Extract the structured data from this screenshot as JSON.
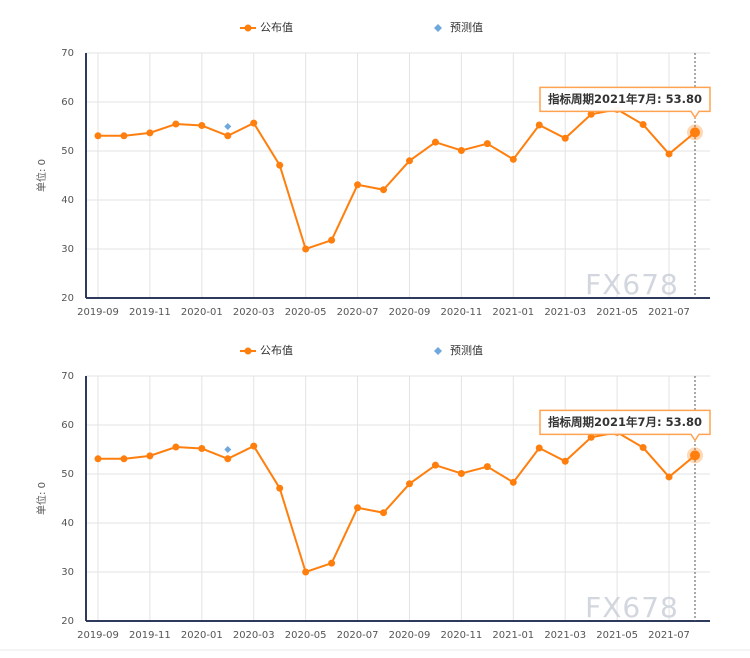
{
  "chart_data": [
    {
      "type": "line",
      "y_label": "单位: 0",
      "watermark": "FX678",
      "annotation": "指标周期2021年7月: 53.80",
      "categories": [
        "2019-09",
        null,
        "2019-11",
        null,
        "2020-01",
        null,
        "2020-03",
        null,
        "2020-05",
        null,
        "2020-07",
        null,
        "2020-09",
        null,
        "2020-11",
        null,
        "2021-01",
        null,
        "2021-03",
        null,
        "2021-05",
        null,
        "2021-07",
        null
      ],
      "series": [
        {
          "name": "公布值",
          "color": "#ff7f0e",
          "values": [
            53.1,
            53.1,
            53.7,
            55.5,
            55.2,
            53.1,
            55.7,
            47.1,
            30.0,
            31.8,
            43.1,
            42.1,
            48.0,
            51.8,
            50.1,
            51.5,
            48.3,
            55.3,
            52.6,
            57.5,
            58.5,
            55.4,
            49.4,
            53.8
          ]
        },
        {
          "name": "预测值",
          "color": "#6fa8dc",
          "values": [
            null,
            null,
            null,
            null,
            null,
            55.0,
            null,
            null,
            null,
            null,
            null,
            null,
            null,
            null,
            null,
            null,
            null,
            null,
            null,
            null,
            null,
            null,
            null,
            null
          ]
        }
      ],
      "ylim": [
        20,
        70
      ],
      "yticks": [
        20,
        30,
        40,
        50,
        60,
        70
      ],
      "grid": true
    },
    {
      "type": "line",
      "y_label": "单位: 0",
      "watermark": "FX678",
      "annotation": "指标周期2021年7月: 53.80",
      "categories": [
        "2019-09",
        null,
        "2019-11",
        null,
        "2020-01",
        null,
        "2020-03",
        null,
        "2020-05",
        null,
        "2020-07",
        null,
        "2020-09",
        null,
        "2020-11",
        null,
        "2021-01",
        null,
        "2021-03",
        null,
        "2021-05",
        null,
        "2021-07",
        null
      ],
      "series": [
        {
          "name": "公布值",
          "color": "#ff7f0e",
          "values": [
            53.1,
            53.1,
            53.7,
            55.5,
            55.2,
            53.1,
            55.7,
            47.1,
            30.0,
            31.8,
            43.1,
            42.1,
            48.0,
            51.8,
            50.1,
            51.5,
            48.3,
            55.3,
            52.6,
            57.5,
            58.5,
            55.4,
            49.4,
            53.8
          ]
        },
        {
          "name": "预测值",
          "color": "#6fa8dc",
          "values": [
            null,
            null,
            null,
            null,
            null,
            55.0,
            null,
            null,
            null,
            null,
            null,
            null,
            null,
            null,
            null,
            null,
            null,
            null,
            null,
            null,
            null,
            null,
            null,
            null
          ]
        }
      ],
      "ylim": [
        20,
        70
      ],
      "yticks": [
        20,
        30,
        40,
        50,
        60,
        70
      ],
      "grid": true
    }
  ]
}
